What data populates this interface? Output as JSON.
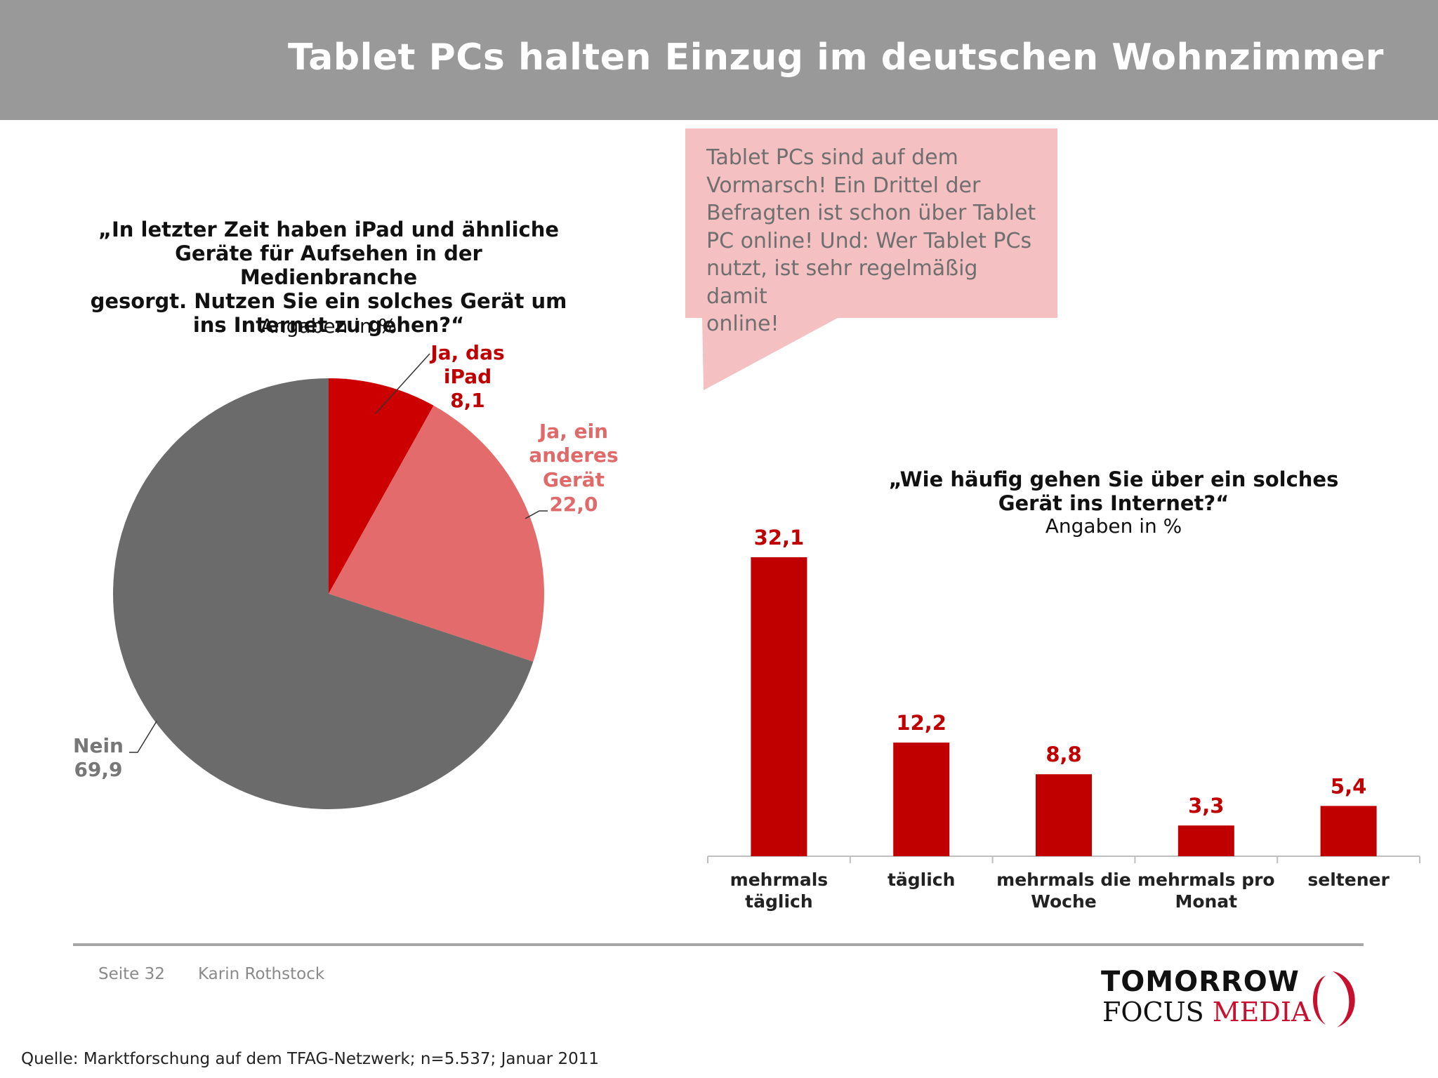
{
  "header": {
    "title": "Tablet PCs halten Einzug im deutschen Wohnzimmer"
  },
  "callout": {
    "text": "Tablet PCs sind auf dem\nVormarsch! Ein Drittel der\nBefragten ist schon über Tablet\nPC online! Und: Wer Tablet PCs\nnutzt, ist sehr regelmäßig damit\nonline!"
  },
  "colors": {
    "header_bg": "#999999",
    "dark_red": "#c00000",
    "light_red": "#e46b6b",
    "grey": "#6b6b6b",
    "callout_bg": "#f4c0c2"
  },
  "pie": {
    "question": "„In letzter Zeit haben iPad und ähnliche\nGeräte für Aufsehen in der Medienbranche\ngesorgt. Nutzen Sie ein solches Gerät um\nins Internet zu gehen?“",
    "subtitle": "Angaben in %"
  },
  "bars": {
    "question": "„Wie häufig gehen Sie über ein solches\nGerät ins Internet?“",
    "subtitle": "Angaben in %"
  },
  "chart_data": [
    {
      "type": "pie",
      "slices": [
        {
          "label": "Ja, das iPad",
          "label_lines": [
            "Ja, das",
            "iPad"
          ],
          "value": 8.1,
          "value_text": "8,1",
          "color": "#cc0000",
          "text_color": "#c00000"
        },
        {
          "label": "Ja, ein anderes Gerät",
          "label_lines": [
            "Ja, ein",
            "anderes",
            "Gerät"
          ],
          "value": 22.0,
          "value_text": "22,0",
          "color": "#e46b6b",
          "text_color": "#e06a6a"
        },
        {
          "label": "Nein",
          "label_lines": [
            "Nein"
          ],
          "value": 69.9,
          "value_text": "69,9",
          "color": "#6b6b6b",
          "text_color": "#777777"
        }
      ],
      "start_angle_deg": 0,
      "direction": "clockwise"
    },
    {
      "type": "bar",
      "categories": [
        [
          "mehrmals",
          "täglich"
        ],
        [
          "täglich"
        ],
        [
          "mehrmals die",
          "Woche"
        ],
        [
          "mehrmals pro",
          "Monat"
        ],
        [
          "seltener"
        ]
      ],
      "values": [
        32.1,
        12.2,
        8.8,
        3.3,
        5.4
      ],
      "value_labels": [
        "32,1",
        "12,2",
        "8,8",
        "3,3",
        "5,4"
      ],
      "color": "#c00000",
      "ylim": [
        0,
        32.1
      ]
    }
  ],
  "footer": {
    "page": "Seite 32",
    "author": "Karin Rothstock",
    "source": "Quelle: Marktforschung auf dem TFAG-Netzwerk; n=5.537; Januar 2011"
  },
  "logo": {
    "top": "TOMORROW",
    "focus": "FOCUS",
    "media": "MEDIA"
  }
}
